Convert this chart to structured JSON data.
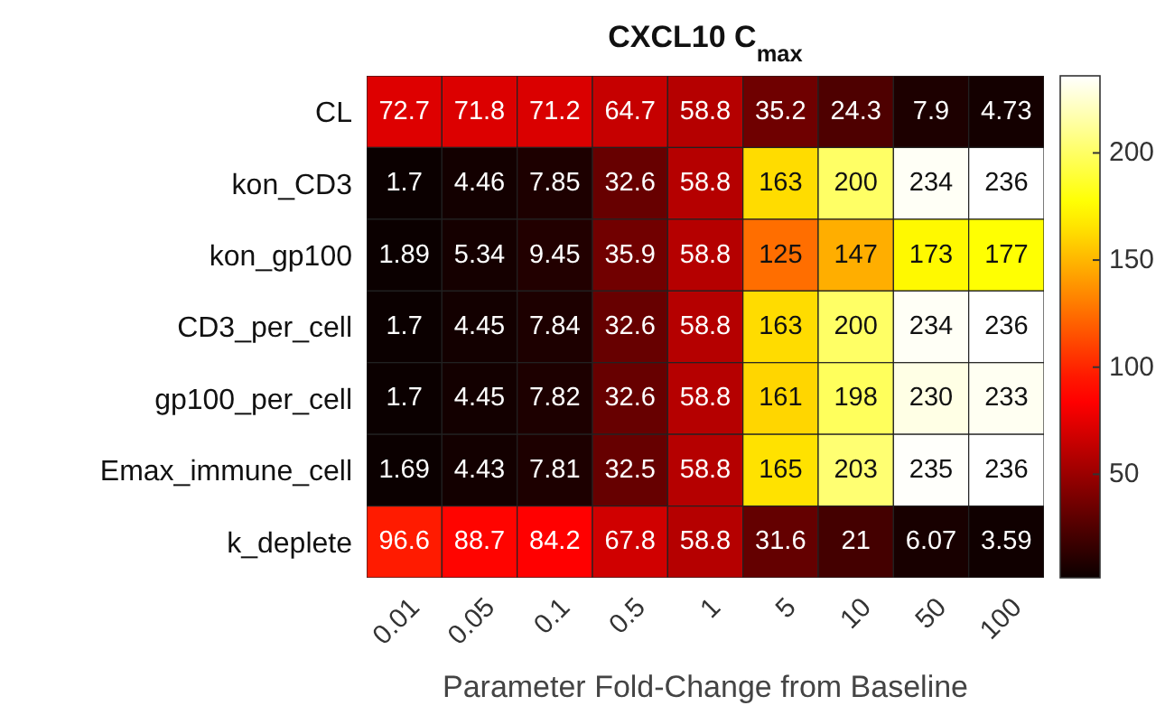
{
  "chart_data": {
    "type": "heatmap",
    "title": "CXCL10 C$_{max}$",
    "xlabel": "Parameter Fold-Change from Baseline",
    "categories": [
      "0.01",
      "0.05",
      "0.1",
      "0.5",
      "1",
      "5",
      "10",
      "50",
      "100"
    ],
    "y_categories": [
      "CL",
      "kon_CD3",
      "kon_gp100",
      "CD3_per_cell",
      "gp100_per_cell",
      "Emax_immune_cell",
      "k_deplete"
    ],
    "cells": [
      [
        72.7,
        71.8,
        71.2,
        64.7,
        58.8,
        35.2,
        24.3,
        7.9,
        4.73
      ],
      [
        1.7,
        4.46,
        7.85,
        32.6,
        58.8,
        163,
        200,
        234,
        236
      ],
      [
        1.89,
        5.34,
        9.45,
        35.9,
        58.8,
        125,
        147,
        173,
        177
      ],
      [
        1.7,
        4.45,
        7.84,
        32.6,
        58.8,
        163,
        200,
        234,
        236
      ],
      [
        1.7,
        4.45,
        7.82,
        32.6,
        58.8,
        161,
        198,
        230,
        233
      ],
      [
        1.69,
        4.43,
        7.81,
        32.5,
        58.8,
        165,
        203,
        235,
        236
      ],
      [
        96.6,
        88.7,
        84.2,
        67.8,
        58.8,
        31.6,
        21,
        6.07,
        3.59
      ]
    ],
    "data_labels": true,
    "clim": [
      1.69,
      236
    ],
    "cticks": [
      50,
      100,
      150,
      200
    ]
  }
}
